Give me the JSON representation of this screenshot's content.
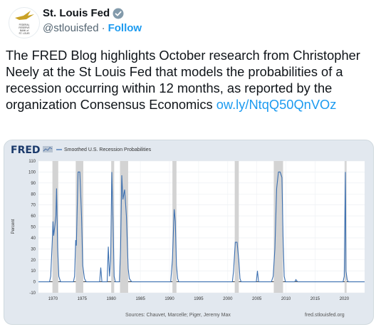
{
  "tweet": {
    "author": "St. Louis Fed",
    "handle": "@stlouisfed",
    "separator": "·",
    "follow_label": "Follow",
    "avatar_text": [
      "FEDERAL",
      "RESERVE",
      "BANK of",
      "ST. LOUIS"
    ],
    "text": "The FRED Blog highlights October research from Christopher Neely at the St Louis Fed that models the probabilities of a recession occurring within 12 months, as reported by the organization Consensus Economics",
    "link": "ow.ly/NtqQ50QnVOz"
  },
  "colors": {
    "accent": "#1d9bf0",
    "series": "#3b6fb0",
    "recession_shade": "#d3d3d3",
    "card_bg": "#e2e8ef"
  },
  "chart_data": {
    "type": "line",
    "logo": "FRED",
    "legend": "Smoothed U.S. Recession Probabilities",
    "ylabel": "Percent",
    "ylim": [
      -10,
      110
    ],
    "yticks": [
      -10,
      0,
      10,
      20,
      30,
      40,
      50,
      60,
      70,
      80,
      90,
      100,
      110
    ],
    "xlim": [
      1967.5,
      2023.5
    ],
    "xticks": [
      1970,
      1975,
      1980,
      1985,
      1990,
      1995,
      2000,
      2005,
      2010,
      2015,
      2020
    ],
    "recessions": [
      [
        1969.9,
        1970.9
      ],
      [
        1973.9,
        1975.2
      ],
      [
        1980.0,
        1980.5
      ],
      [
        1981.5,
        1982.9
      ],
      [
        1990.5,
        1991.2
      ],
      [
        2001.2,
        2001.9
      ],
      [
        2007.9,
        2009.5
      ],
      [
        2020.1,
        2020.4
      ]
    ],
    "series": [
      {
        "name": "Smoothed U.S. Recession Probabilities",
        "x": [
          1967.5,
          1969.4,
          1969.6,
          1969.9,
          1970.0,
          1970.1,
          1970.3,
          1970.5,
          1970.6,
          1970.8,
          1971.0,
          1971.3,
          1973.5,
          1973.7,
          1973.9,
          1974.0,
          1974.3,
          1974.6,
          1974.9,
          1975.1,
          1975.4,
          1975.7,
          1978.0,
          1978.2,
          1978.4,
          1979.3,
          1979.5,
          1979.7,
          1979.9,
          1980.1,
          1980.3,
          1980.5,
          1980.7,
          1981.4,
          1981.6,
          1981.8,
          1982.0,
          1982.3,
          1982.6,
          1982.9,
          1983.1,
          1983.5,
          1990.2,
          1990.5,
          1990.8,
          1991.0,
          1991.2,
          1991.4,
          1991.6,
          2000.8,
          2001.0,
          2001.3,
          2001.6,
          2001.9,
          2002.1,
          2002.3,
          2004.9,
          2005.1,
          2005.3,
          2007.5,
          2007.8,
          2008.1,
          2008.4,
          2008.7,
          2009.0,
          2009.3,
          2009.5,
          2009.7,
          2009.9,
          2011.5,
          2011.7,
          2012.0,
          2019.8,
          2020.0,
          2020.2,
          2020.3,
          2020.5,
          2020.7,
          2023.5
        ],
        "y": [
          0,
          0,
          5,
          40,
          55,
          42,
          50,
          60,
          85,
          30,
          5,
          0,
          0,
          5,
          38,
          33,
          100,
          100,
          60,
          15,
          3,
          0,
          0,
          13,
          0,
          0,
          32,
          5,
          20,
          100,
          55,
          5,
          0,
          0,
          30,
          97,
          75,
          84,
          60,
          12,
          3,
          0,
          0,
          20,
          66,
          55,
          15,
          3,
          0,
          0,
          10,
          36,
          36,
          20,
          3,
          0,
          0,
          10,
          0,
          0,
          5,
          30,
          85,
          100,
          100,
          95,
          40,
          5,
          0,
          0,
          2,
          0,
          0,
          5,
          100,
          10,
          2,
          0,
          0
        ]
      }
    ],
    "source": "Sources: Chauvet, Marcelle; Piger, Jeremy Max",
    "site": "fred.stlouisfed.org"
  }
}
